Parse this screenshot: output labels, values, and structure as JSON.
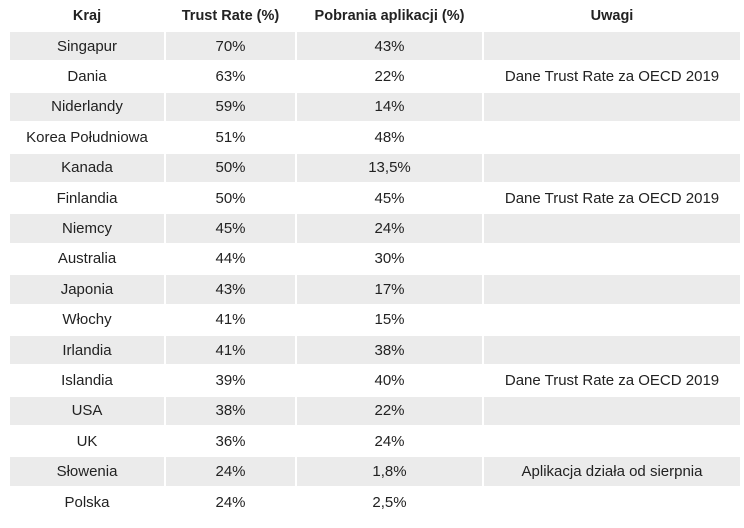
{
  "table": {
    "headers": [
      "Kraj",
      "Trust Rate (%)",
      "Pobrania aplikacji (%)",
      "Uwagi"
    ],
    "rows": [
      [
        "Singapur",
        "70%",
        "43%",
        ""
      ],
      [
        "Dania",
        "63%",
        "22%",
        "Dane Trust Rate za OECD 2019"
      ],
      [
        "Niderlandy",
        "59%",
        "14%",
        ""
      ],
      [
        "Korea Południowa",
        "51%",
        "48%",
        ""
      ],
      [
        "Kanada",
        "50%",
        "13,5%",
        ""
      ],
      [
        "Finlandia",
        "50%",
        "45%",
        "Dane Trust Rate za OECD 2019"
      ],
      [
        "Niemcy",
        "45%",
        "24%",
        ""
      ],
      [
        "Australia",
        "44%",
        "30%",
        ""
      ],
      [
        "Japonia",
        "43%",
        "17%",
        ""
      ],
      [
        "Włochy",
        "41%",
        "15%",
        ""
      ],
      [
        "Irlandia",
        "41%",
        "38%",
        ""
      ],
      [
        "Islandia",
        "39%",
        "40%",
        "Dane Trust Rate za OECD 2019"
      ],
      [
        "USA",
        "38%",
        "22%",
        ""
      ],
      [
        "UK",
        "36%",
        "24%",
        ""
      ],
      [
        "Słowenia",
        "24%",
        "1,8%",
        "Aplikacja działa od sierpnia"
      ],
      [
        "Polska",
        "24%",
        "2,5%",
        ""
      ]
    ]
  },
  "colors": {
    "stripe": "#ebebeb",
    "text": "#222222",
    "background": "#ffffff"
  }
}
